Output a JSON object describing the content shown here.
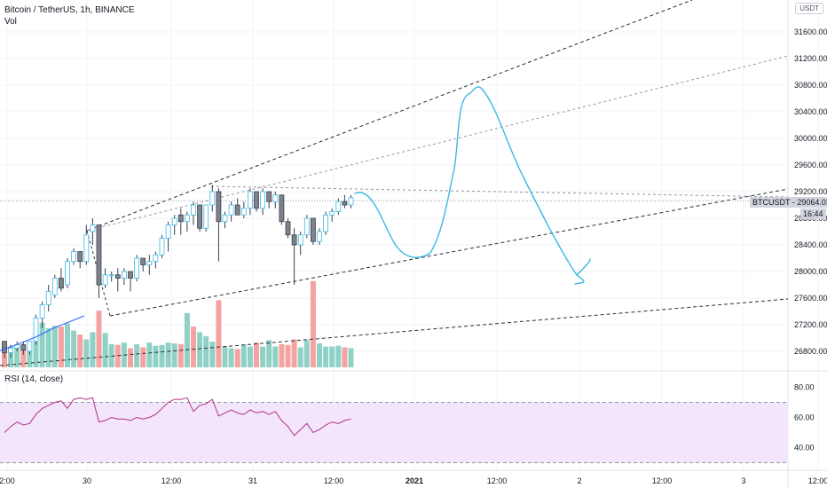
{
  "header": {
    "symbol_line": "Bitcoin / TetherUS, 1h, BINANCE",
    "vol_label": "Vol",
    "rsi_label": "RSI (14, close)",
    "currency_button": "USDT"
  },
  "price_tag": {
    "label": "BTCUSDT",
    "value": "29064.03",
    "countdown": "16:44"
  },
  "colors": {
    "up": "#26a69a",
    "down": "#ef5350",
    "vol_up": "#8fd1c6",
    "vol_down": "#f5a3a1",
    "rsi_line": "#b2318a",
    "rsi_band": "#f3e5fb",
    "drawing": "#3fb8e4",
    "price_tag_bg": "#d1d4dc"
  },
  "chart_data": [
    {
      "type": "candlestick",
      "title": "Bitcoin / TetherUS, 1h, BINANCE",
      "y_ticks": [
        26800,
        27200,
        27600,
        28000,
        28400,
        28800,
        29200,
        29600,
        30000,
        30400,
        30800,
        31200,
        31600
      ],
      "x_ticks": [
        "2:00",
        "30",
        "12:00",
        "31",
        "12:00",
        "2021",
        "12:00",
        "2",
        "12:00",
        "3",
        "12:00"
      ],
      "ylim": [
        26500,
        31800
      ],
      "last_price": 29064.03,
      "candles_ohlc": [
        [
          26950,
          26950,
          26700,
          26780
        ],
        [
          26780,
          26900,
          26700,
          26850
        ],
        [
          26850,
          26950,
          26800,
          26900
        ],
        [
          26900,
          26950,
          26750,
          26820
        ],
        [
          26800,
          26950,
          26750,
          26950
        ],
        [
          26950,
          27350,
          26900,
          27300
        ],
        [
          27300,
          27550,
          27150,
          27500
        ],
        [
          27500,
          27800,
          27400,
          27700
        ],
        [
          27650,
          27950,
          27600,
          27900
        ],
        [
          27900,
          28050,
          27700,
          27750
        ],
        [
          27800,
          28200,
          27750,
          28150
        ],
        [
          28150,
          28350,
          28100,
          28300
        ],
        [
          28300,
          28250,
          28050,
          28150
        ],
        [
          28150,
          28700,
          28100,
          28550
        ],
        [
          28600,
          28800,
          28400,
          28700
        ],
        [
          28700,
          28650,
          27600,
          27800
        ],
        [
          27800,
          28050,
          27750,
          27950
        ],
        [
          27950,
          28000,
          27850,
          27950
        ],
        [
          27950,
          28050,
          27700,
          27900
        ],
        [
          27900,
          28050,
          27800,
          28000
        ],
        [
          28000,
          28000,
          27700,
          27900
        ],
        [
          27900,
          28250,
          27850,
          28200
        ],
        [
          28200,
          28200,
          28000,
          28100
        ],
        [
          28100,
          28250,
          27950,
          28150
        ],
        [
          28150,
          28300,
          28050,
          28250
        ],
        [
          28250,
          28550,
          28200,
          28500
        ],
        [
          28500,
          28750,
          28300,
          28700
        ],
        [
          28700,
          28850,
          28550,
          28800
        ],
        [
          28850,
          28950,
          28550,
          28750
        ],
        [
          28750,
          28900,
          28600,
          28850
        ],
        [
          28850,
          29050,
          28700,
          29000
        ],
        [
          29000,
          28900,
          28600,
          28650
        ],
        [
          28650,
          29000,
          28600,
          29000
        ],
        [
          29000,
          29300,
          28900,
          29200
        ],
        [
          29200,
          29250,
          28150,
          28750
        ],
        [
          28750,
          28900,
          28650,
          28850
        ],
        [
          28850,
          29050,
          28750,
          29000
        ],
        [
          29000,
          29100,
          28850,
          28850
        ],
        [
          28850,
          29050,
          28800,
          28950
        ],
        [
          28950,
          29250,
          28850,
          29200
        ],
        [
          29200,
          29150,
          28900,
          28950
        ],
        [
          28950,
          29250,
          28850,
          29200
        ],
        [
          29200,
          29050,
          28950,
          29050
        ],
        [
          29050,
          29200,
          28950,
          29150
        ],
        [
          29150,
          29000,
          28700,
          28750
        ],
        [
          28750,
          28800,
          28500,
          28550
        ],
        [
          28550,
          28650,
          27800,
          28400
        ],
        [
          28400,
          28600,
          28250,
          28550
        ],
        [
          28550,
          28850,
          28500,
          28800
        ],
        [
          28800,
          28800,
          28400,
          28450
        ],
        [
          28450,
          28650,
          28400,
          28600
        ],
        [
          28600,
          28900,
          28550,
          28850
        ],
        [
          28850,
          28950,
          28750,
          28900
        ],
        [
          28900,
          29100,
          28850,
          29050
        ],
        [
          29050,
          29150,
          28950,
          29000
        ],
        [
          29000,
          29150,
          28950,
          29110
        ]
      ]
    },
    {
      "type": "bar",
      "title": "Vol",
      "values": [
        3.2,
        2.6,
        2.5,
        2.3,
        2.2,
        3.9,
        5.6,
        4.9,
        5.2,
        5.1,
        5.5,
        4.6,
        4.1,
        3.5,
        4.4,
        7.1,
        4.3,
        2.9,
        2.8,
        3.1,
        2.4,
        2.9,
        2.5,
        3.1,
        2.7,
        2.8,
        3.1,
        3.0,
        2.9,
        6.8,
        5.1,
        4.4,
        3.9,
        3.2,
        8.4,
        2.6,
        2.4,
        2.3,
        2.9,
        2.6,
        3.1,
        2.6,
        3.4,
        2.6,
        2.9,
        2.8,
        3.5,
        2.5,
        3.4,
        10.8,
        3.0,
        2.6,
        2.6,
        2.7,
        2.5,
        2.4
      ],
      "directions": [
        "d",
        "u",
        "u",
        "d",
        "u",
        "u",
        "u",
        "u",
        "u",
        "d",
        "u",
        "u",
        "d",
        "u",
        "u",
        "d",
        "u",
        "u",
        "d",
        "u",
        "d",
        "u",
        "d",
        "u",
        "u",
        "u",
        "u",
        "u",
        "d",
        "u",
        "d",
        "u",
        "u",
        "u",
        "d",
        "u",
        "u",
        "d",
        "u",
        "u",
        "d",
        "u",
        "u",
        "u",
        "d",
        "d",
        "d",
        "u",
        "u",
        "d",
        "u",
        "u",
        "u",
        "u",
        "d",
        "u"
      ]
    },
    {
      "type": "line",
      "title": "RSI (14, close)",
      "y_ticks": [
        40.0,
        60.0,
        80.0
      ],
      "ylim": [
        25,
        85
      ],
      "band": [
        30,
        70
      ],
      "values": [
        50,
        54,
        57,
        55,
        56,
        62,
        66,
        68,
        70,
        71,
        66,
        72,
        73,
        72,
        73,
        57,
        58,
        60,
        59,
        59,
        58,
        60,
        59,
        60,
        62,
        66,
        70,
        72,
        72,
        73,
        64,
        68,
        69,
        72,
        61,
        63,
        65,
        63,
        62,
        65,
        63,
        64,
        62,
        64,
        58,
        54,
        48,
        52,
        56,
        50,
        52,
        55,
        57,
        56,
        58,
        59
      ]
    }
  ]
}
